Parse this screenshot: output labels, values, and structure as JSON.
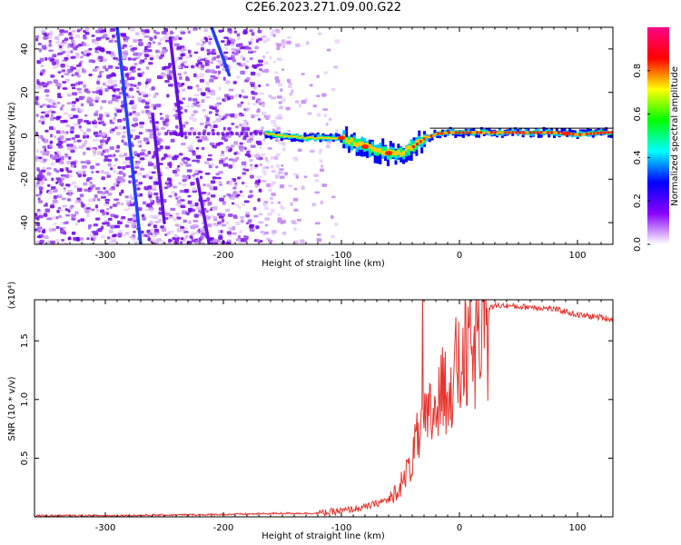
{
  "title": "C2E6.2023.271.09.00.G22",
  "chart_data": [
    {
      "type": "heatmap",
      "xlabel": "Height of straight line (km)",
      "ylabel": "Frequency (Hz)",
      "xlim": [
        -360,
        130
      ],
      "ylim": [
        -50,
        50
      ],
      "xticks": [
        -300,
        -200,
        -100,
        0,
        100
      ],
      "yticks": [
        -40,
        -20,
        0,
        20,
        40
      ],
      "colorbar": {
        "label": "Normalized spectral amplitude",
        "range": [
          0.0,
          1.0
        ],
        "ticks": [
          0.0,
          0.2,
          0.4,
          0.6,
          0.8
        ],
        "colors": [
          "#ffffff",
          "#8800ff",
          "#0000ff",
          "#00ffff",
          "#00ff00",
          "#ffff00",
          "#ff0000",
          "#ff0088"
        ]
      },
      "ridge": {
        "x": [
          -165,
          -150,
          -130,
          -110,
          -100,
          -90,
          -80,
          -70,
          -60,
          -50,
          -40,
          -30,
          -20,
          -10,
          0,
          20,
          40,
          60,
          80,
          90,
          100,
          110,
          120,
          130
        ],
        "y": [
          1,
          0,
          -1,
          -1,
          -1,
          -3,
          -5,
          -7,
          -8,
          -8,
          -5,
          -1,
          1,
          1.5,
          1.5,
          1.5,
          1.5,
          1.5,
          1.5,
          1,
          0.5,
          1,
          1.5,
          1.5
        ]
      }
    },
    {
      "type": "line",
      "xlabel": "Height of straight line (km)",
      "ylabel": "SNR (10 * v/v)",
      "yscale_label": "(x10⁴)",
      "xlim": [
        -360,
        130
      ],
      "ylim": [
        0,
        1.85
      ],
      "xticks": [
        -300,
        -200,
        -100,
        0,
        100
      ],
      "yticks": [
        0.5,
        1.0,
        1.5
      ],
      "ytick_labels": [
        "0.5",
        "1.0",
        "1.5"
      ],
      "series": [
        {
          "color": "#e8332d",
          "x": [
            -360,
            -300,
            -250,
            -200,
            -150,
            -120,
            -100,
            -80,
            -60,
            -50,
            -45,
            -40,
            -35,
            -30,
            -25,
            -20,
            -15,
            -10,
            -5,
            0,
            5,
            10,
            15,
            20,
            25,
            30,
            40,
            50,
            60,
            70,
            80,
            90,
            100,
            110,
            120,
            130
          ],
          "y": [
            0.01,
            0.01,
            0.015,
            0.02,
            0.03,
            0.03,
            0.05,
            0.08,
            0.15,
            0.3,
            0.4,
            0.55,
            0.75,
            0.85,
            0.95,
            1.05,
            1.15,
            1.25,
            1.35,
            1.4,
            1.5,
            1.55,
            1.6,
            1.7,
            1.77,
            1.8,
            1.8,
            1.79,
            1.79,
            1.78,
            1.77,
            1.75,
            1.72,
            1.71,
            1.7,
            1.68
          ]
        }
      ]
    }
  ]
}
